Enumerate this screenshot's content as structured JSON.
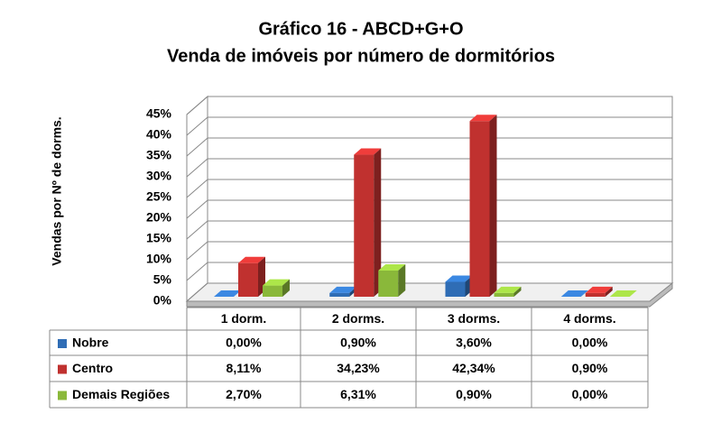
{
  "chart_data": {
    "type": "bar3d",
    "title": "Gráfico 16 - ABCD+G+O",
    "subtitle": "Venda de imóveis por número de dormitórios",
    "y_label": "Vendas por Nº de dorms.",
    "categories": [
      "1 dorm.",
      "2 dorms.",
      "3 dorms.",
      "4 dorms."
    ],
    "series": [
      {
        "name": "Nobre",
        "color": "#2f6db5",
        "values": [
          0,
          0.9,
          3.6,
          0
        ],
        "value_labels": [
          "0,00%",
          "0,90%",
          "3,60%",
          "0,00%"
        ]
      },
      {
        "name": "Centro",
        "color": "#c0312f",
        "values": [
          8.11,
          34.23,
          42.34,
          0.9
        ],
        "value_labels": [
          "8,11%",
          "34,23%",
          "42,34%",
          "0,90%"
        ]
      },
      {
        "name": "Demais Regiões",
        "color": "#8ab83a",
        "values": [
          2.7,
          6.31,
          0.9,
          0
        ],
        "value_labels": [
          "2,70%",
          "6,31%",
          "0,90%",
          "0,00%"
        ]
      }
    ],
    "ylim": [
      0,
      45
    ],
    "yticks": [
      {
        "value": 0,
        "label": "0%"
      },
      {
        "value": 5,
        "label": "5%"
      },
      {
        "value": 10,
        "label": "10%"
      },
      {
        "value": 15,
        "label": "15%"
      },
      {
        "value": 20,
        "label": "20%"
      },
      {
        "value": 25,
        "label": "25%"
      },
      {
        "value": 30,
        "label": "30%"
      },
      {
        "value": 35,
        "label": "35%"
      },
      {
        "value": 40,
        "label": "40%"
      },
      {
        "value": 45,
        "label": "45%"
      }
    ],
    "grid": true
  }
}
